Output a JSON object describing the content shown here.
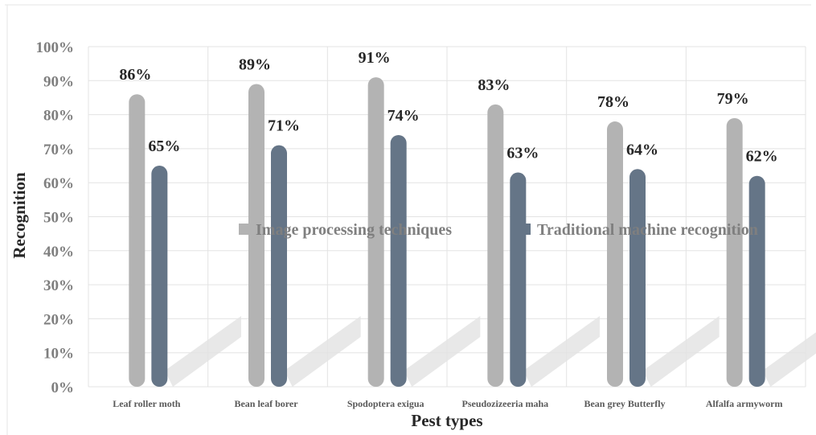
{
  "chart_data": {
    "type": "bar",
    "categories": [
      "Leaf roller moth",
      "Bean leaf borer",
      "Spodoptera exigua",
      "Pseudozizeeria maha",
      "Bean grey Butterfly",
      "Alfalfa armyworm"
    ],
    "series": [
      {
        "name": "Image processing techniques",
        "values": [
          86,
          89,
          91,
          83,
          78,
          79
        ],
        "labels": [
          "86%",
          "89%",
          "91%",
          "83%",
          "78%",
          "79%"
        ],
        "color": "#b3b3b3"
      },
      {
        "name": "Traditional machine recognition",
        "values": [
          65,
          71,
          74,
          63,
          64,
          62
        ],
        "labels": [
          "65%",
          "71%",
          "74%",
          "63%",
          "64%",
          "62%"
        ],
        "color": "#657587"
      }
    ],
    "xlabel": "Pest types",
    "ylabel": "Recognition",
    "ylim": [
      0,
      100
    ],
    "yticks": [
      "0%",
      "10%",
      "20%",
      "30%",
      "40%",
      "50%",
      "60%",
      "70%",
      "80%",
      "90%",
      "100%"
    ],
    "grid": true,
    "legend_position": "center"
  }
}
